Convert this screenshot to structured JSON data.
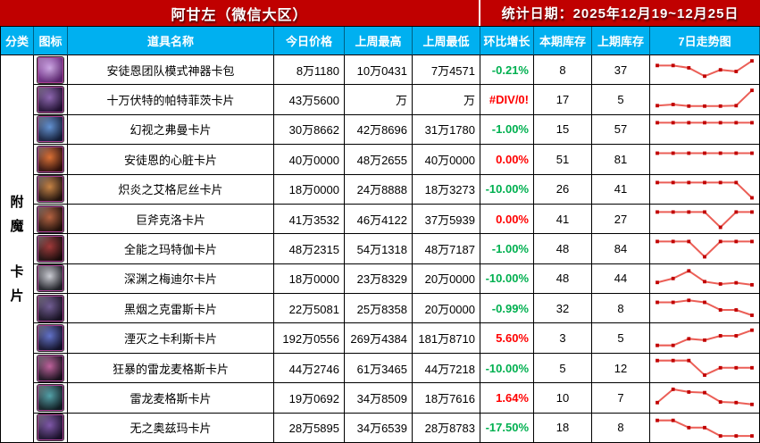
{
  "app": {
    "title": "阿甘左（微信大区）",
    "stat_date": "统计日期：2025年12月19~12月25日"
  },
  "colors": {
    "header_red": "#C00000",
    "header_blue": "#00B0F0",
    "change_up_red": "#FF0000",
    "change_down_green": "#00B050",
    "spark_line": "#E8433A",
    "spark_marker": "#C00000"
  },
  "columns": [
    {
      "key": "category",
      "label": "分类"
    },
    {
      "key": "icon",
      "label": "图标"
    },
    {
      "key": "name",
      "label": "道具名称"
    },
    {
      "key": "today",
      "label": "今日价格"
    },
    {
      "key": "week-high",
      "label": "上周最高"
    },
    {
      "key": "week-low",
      "label": "上周最低"
    },
    {
      "key": "change",
      "label": "环比增长"
    },
    {
      "key": "stock-now",
      "label": "本期库存"
    },
    {
      "key": "stock-prev",
      "label": "上期库存"
    },
    {
      "key": "trend",
      "label": "7日走势图"
    }
  ],
  "category_label": "附魔卡片",
  "rows": [
    {
      "name": "安徒恩团队模式神器卡包",
      "today": "8万1180",
      "week_high": "10万0431",
      "week_low": "7万4571",
      "change": "-0.21%",
      "change_color": "#00B050",
      "stock_now": "8",
      "stock_prev": "37",
      "trend": [
        0.72,
        0.72,
        0.6,
        0.18,
        0.5,
        0.42,
        0.95
      ],
      "icon_c1": "#cfa7e8",
      "icon_c2": "#6e2b86"
    },
    {
      "name": "十万伏特的帕特菲茨卡片",
      "today": "43万5600",
      "week_high": "万",
      "week_low": "万",
      "change": "#DIV/0!",
      "change_color": "#FF0000",
      "stock_now": "17",
      "stock_prev": "5",
      "trend": [
        0.18,
        0.24,
        0.16,
        0.16,
        0.16,
        0.18,
        0.95
      ],
      "icon_c1": "#8a5fb0",
      "icon_c2": "#241038"
    },
    {
      "name": "幻视之弗曼卡片",
      "today": "30万8662",
      "week_high": "42万8696",
      "week_low": "31万1780",
      "change": "-1.00%",
      "change_color": "#00B050",
      "stock_now": "15",
      "stock_prev": "57",
      "trend": [
        0.85,
        0.85,
        0.85,
        0.85,
        0.85,
        0.85,
        0.85
      ],
      "icon_c1": "#5b8fd6",
      "icon_c2": "#132040"
    },
    {
      "name": "安徒恩的心脏卡片",
      "today": "40万0000",
      "week_high": "48万2655",
      "week_low": "40万0000",
      "change": "0.00%",
      "change_color": "#FF0000",
      "stock_now": "51",
      "stock_prev": "81",
      "trend": [
        0.8,
        0.8,
        0.8,
        0.8,
        0.8,
        0.8,
        0.8
      ],
      "icon_c1": "#e06a28",
      "icon_c2": "#35100a"
    },
    {
      "name": "炽炎之艾格尼丝卡片",
      "today": "18万0000",
      "week_high": "24万8888",
      "week_low": "18万3273",
      "change": "-10.00%",
      "change_color": "#00B050",
      "stock_now": "26",
      "stock_prev": "41",
      "trend": [
        0.85,
        0.85,
        0.85,
        0.85,
        0.85,
        0.85,
        0.08
      ],
      "icon_c1": "#c97f3a",
      "icon_c2": "#26140c"
    },
    {
      "name": "巨斧克洛卡片",
      "today": "41万3532",
      "week_high": "46万4122",
      "week_low": "37万5939",
      "change": "0.00%",
      "change_color": "#FF0000",
      "stock_now": "41",
      "stock_prev": "27",
      "trend": [
        0.85,
        0.85,
        0.85,
        0.85,
        0.08,
        0.85,
        0.85
      ],
      "icon_c1": "#b55a35",
      "icon_c2": "#241008"
    },
    {
      "name": "全能之玛特伽卡片",
      "today": "48万2315",
      "week_high": "54万1318",
      "week_low": "48万7187",
      "change": "-1.00%",
      "change_color": "#00B050",
      "stock_now": "48",
      "stock_prev": "84",
      "trend": [
        0.85,
        0.85,
        0.85,
        0.08,
        0.85,
        0.85,
        0.85
      ],
      "icon_c1": "#9e2d2d",
      "icon_c2": "#1c0a0a"
    },
    {
      "name": "深渊之梅迪尔卡片",
      "today": "18万0000",
      "week_high": "23万8329",
      "week_low": "20万0000",
      "change": "-10.00%",
      "change_color": "#00B050",
      "stock_now": "48",
      "stock_prev": "44",
      "trend": [
        0.32,
        0.52,
        0.9,
        0.36,
        0.24,
        0.3,
        0.2
      ],
      "icon_c1": "#cfd0d8",
      "icon_c2": "#23242c"
    },
    {
      "name": "黑烟之克雷斯卡片",
      "today": "22万5081",
      "week_high": "25万8358",
      "week_low": "20万0000",
      "change": "-0.99%",
      "change_color": "#00B050",
      "stock_now": "32",
      "stock_prev": "8",
      "trend": [
        0.8,
        0.8,
        0.9,
        0.8,
        0.42,
        0.42,
        0.15
      ],
      "icon_c1": "#6b5590",
      "icon_c2": "#191126"
    },
    {
      "name": "湮灭之卡利斯卡片",
      "today": "192万0556",
      "week_high": "269万4384",
      "week_low": "181万8710",
      "change": "5.60%",
      "change_color": "#FF0000",
      "stock_now": "3",
      "stock_prev": "5",
      "trend": [
        0.12,
        0.12,
        0.45,
        0.38,
        0.6,
        0.6,
        0.88
      ],
      "icon_c1": "#5a6ccc",
      "icon_c2": "#131230"
    },
    {
      "name": "狂暴的雷龙麦格斯卡片",
      "today": "44万2746",
      "week_high": "61万3465",
      "week_low": "44万7218",
      "change": "-10.00%",
      "change_color": "#00B050",
      "stock_now": "5",
      "stock_prev": "12",
      "trend": [
        0.88,
        0.88,
        0.88,
        0.15,
        0.52,
        0.52,
        0.52
      ],
      "icon_c1": "#c05a9a",
      "icon_c2": "#1c1020"
    },
    {
      "name": "雷龙麦格斯卡片",
      "today": "19万0692",
      "week_high": "34万8509",
      "week_low": "18万7616",
      "change": "1.64%",
      "change_color": "#FF0000",
      "stock_now": "10",
      "stock_prev": "7",
      "trend": [
        0.25,
        0.92,
        0.78,
        0.75,
        0.28,
        0.25,
        0.16
      ],
      "icon_c1": "#4aa0a8",
      "icon_c2": "#0f2026"
    },
    {
      "name": "无之奥兹玛卡片",
      "today": "28万5895",
      "week_high": "34万6539",
      "week_low": "28万8783",
      "change": "-17.50%",
      "change_color": "#00B050",
      "stock_now": "18",
      "stock_prev": "8",
      "trend": [
        0.88,
        0.88,
        0.52,
        0.52,
        0.1,
        0.1,
        0.1
      ],
      "icon_c1": "#7a4fa8",
      "icon_c2": "#1c1030"
    }
  ]
}
